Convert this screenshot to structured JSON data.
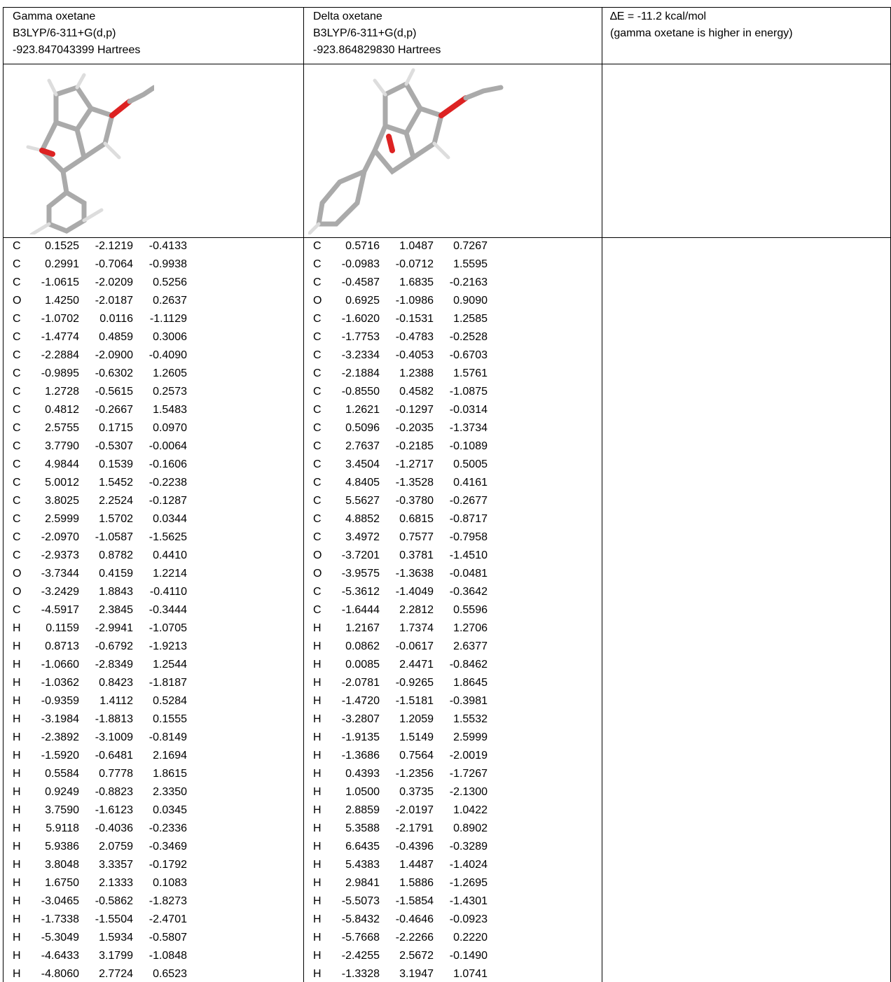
{
  "columns": [
    {
      "title": "Gamma oxetane",
      "method": "B3LYP/6-311+G(d,p)",
      "energy": "-923.847043399 Hartrees",
      "atoms": [
        [
          "C",
          "0.1525",
          "-2.1219",
          "-0.4133"
        ],
        [
          "C",
          "0.2991",
          "-0.7064",
          "-0.9938"
        ],
        [
          "C",
          "-1.0615",
          "-2.0209",
          "0.5256"
        ],
        [
          "O",
          "1.4250",
          "-2.0187",
          "0.2637"
        ],
        [
          "C",
          "-1.0702",
          "0.0116",
          "-1.1129"
        ],
        [
          "C",
          "-1.4774",
          "0.4859",
          "0.3006"
        ],
        [
          "C",
          "-2.2884",
          "-2.0900",
          "-0.4090"
        ],
        [
          "C",
          "-0.9895",
          "-0.6302",
          "1.2605"
        ],
        [
          "C",
          "1.2728",
          "-0.5615",
          "0.2573"
        ],
        [
          "C",
          "0.4812",
          "-0.2667",
          "1.5483"
        ],
        [
          "C",
          "2.5755",
          "0.1715",
          "0.0970"
        ],
        [
          "C",
          "3.7790",
          "-0.5307",
          "-0.0064"
        ],
        [
          "C",
          "4.9844",
          "0.1539",
          "-0.1606"
        ],
        [
          "C",
          "5.0012",
          "1.5452",
          "-0.2238"
        ],
        [
          "C",
          "3.8025",
          "2.2524",
          "-0.1287"
        ],
        [
          "C",
          "2.5999",
          "1.5702",
          "0.0344"
        ],
        [
          "C",
          "-2.0970",
          "-1.0587",
          "-1.5625"
        ],
        [
          "C",
          "-2.9373",
          "0.8782",
          "0.4410"
        ],
        [
          "O",
          "-3.7344",
          "0.4159",
          "1.2214"
        ],
        [
          "O",
          "-3.2429",
          "1.8843",
          "-0.4110"
        ],
        [
          "C",
          "-4.5917",
          "2.3845",
          "-0.3444"
        ],
        [
          "H",
          "0.1159",
          "-2.9941",
          "-1.0705"
        ],
        [
          "H",
          "0.8713",
          "-0.6792",
          "-1.9213"
        ],
        [
          "H",
          "-1.0660",
          "-2.8349",
          "1.2544"
        ],
        [
          "H",
          "-1.0362",
          "0.8423",
          "-1.8187"
        ],
        [
          "H",
          "-0.9359",
          "1.4112",
          "0.5284"
        ],
        [
          "H",
          "-3.1984",
          "-1.8813",
          "0.1555"
        ],
        [
          "H",
          "-2.3892",
          "-3.1009",
          "-0.8149"
        ],
        [
          "H",
          "-1.5920",
          "-0.6481",
          "2.1694"
        ],
        [
          "H",
          "0.5584",
          "0.7778",
          "1.8615"
        ],
        [
          "H",
          "0.9249",
          "-0.8823",
          "2.3350"
        ],
        [
          "H",
          "3.7590",
          "-1.6123",
          "0.0345"
        ],
        [
          "H",
          "5.9118",
          "-0.4036",
          "-0.2336"
        ],
        [
          "H",
          "5.9386",
          "2.0759",
          "-0.3469"
        ],
        [
          "H",
          "3.8048",
          "3.3357",
          "-0.1792"
        ],
        [
          "H",
          "1.6750",
          "2.1333",
          "0.1083"
        ],
        [
          "H",
          "-3.0465",
          "-0.5862",
          "-1.8273"
        ],
        [
          "H",
          "-1.7338",
          "-1.5504",
          "-2.4701"
        ],
        [
          "H",
          "-5.3049",
          "1.5934",
          "-0.5807"
        ],
        [
          "H",
          "-4.6433",
          "3.1799",
          "-1.0848"
        ],
        [
          "H",
          "-4.8060",
          "2.7724",
          "0.6523"
        ]
      ]
    },
    {
      "title": "Delta oxetane",
      "method": "B3LYP/6-311+G(d,p)",
      "energy": "-923.864829830 Hartrees",
      "atoms": [
        [
          "C",
          "0.5716",
          "1.0487",
          "0.7267"
        ],
        [
          "C",
          "-0.0983",
          "-0.0712",
          "1.5595"
        ],
        [
          "C",
          "-0.4587",
          "1.6835",
          "-0.2163"
        ],
        [
          "O",
          "0.6925",
          "-1.0986",
          "0.9090"
        ],
        [
          "C",
          "-1.6020",
          "-0.1531",
          "1.2585"
        ],
        [
          "C",
          "-1.7753",
          "-0.4783",
          "-0.2528"
        ],
        [
          "C",
          "-3.2334",
          "-0.4053",
          "-0.6703"
        ],
        [
          "C",
          "-2.1884",
          "1.2388",
          "1.5761"
        ],
        [
          "C",
          "-0.8550",
          "0.4582",
          "-1.0875"
        ],
        [
          "C",
          "1.2621",
          "-0.1297",
          "-0.0314"
        ],
        [
          "C",
          "0.5096",
          "-0.2035",
          "-1.3734"
        ],
        [
          "C",
          "2.7637",
          "-0.2185",
          "-0.1089"
        ],
        [
          "C",
          "3.4504",
          "-1.2717",
          "0.5005"
        ],
        [
          "C",
          "4.8405",
          "-1.3528",
          "0.4161"
        ],
        [
          "C",
          "5.5627",
          "-0.3780",
          "-0.2677"
        ],
        [
          "C",
          "4.8852",
          "0.6815",
          "-0.8717"
        ],
        [
          "C",
          "3.4972",
          "0.7577",
          "-0.7958"
        ],
        [
          "O",
          "-3.7201",
          "0.3781",
          "-1.4510"
        ],
        [
          "O",
          "-3.9575",
          "-1.3638",
          "-0.0481"
        ],
        [
          "C",
          "-5.3612",
          "-1.4049",
          "-0.3642"
        ],
        [
          "C",
          "-1.6444",
          "2.2812",
          "0.5596"
        ],
        [
          "H",
          "1.2167",
          "1.7374",
          "1.2706"
        ],
        [
          "H",
          "0.0862",
          "-0.0617",
          "2.6377"
        ],
        [
          "H",
          "0.0085",
          "2.4471",
          "-0.8462"
        ],
        [
          "H",
          "-2.0781",
          "-0.9265",
          "1.8645"
        ],
        [
          "H",
          "-1.4720",
          "-1.5181",
          "-0.3981"
        ],
        [
          "H",
          "-3.2807",
          "1.2059",
          "1.5532"
        ],
        [
          "H",
          "-1.9135",
          "1.5149",
          "2.5999"
        ],
        [
          "H",
          "-1.3686",
          "0.7564",
          "-2.0019"
        ],
        [
          "H",
          "0.4393",
          "-1.2356",
          "-1.7267"
        ],
        [
          "H",
          "1.0500",
          "0.3735",
          "-2.1300"
        ],
        [
          "H",
          "2.8859",
          "-2.0197",
          "1.0422"
        ],
        [
          "H",
          "5.3588",
          "-2.1791",
          "0.8902"
        ],
        [
          "H",
          "6.6435",
          "-0.4396",
          "-0.3289"
        ],
        [
          "H",
          "5.4383",
          "1.4487",
          "-1.4024"
        ],
        [
          "H",
          "2.9841",
          "1.5886",
          "-1.2695"
        ],
        [
          "H",
          "-5.5073",
          "-1.5854",
          "-1.4301"
        ],
        [
          "H",
          "-5.8432",
          "-0.4646",
          "-0.0923"
        ],
        [
          "H",
          "-5.7668",
          "-2.2266",
          "0.2220"
        ],
        [
          "H",
          "-2.4255",
          "2.5672",
          "-0.1490"
        ],
        [
          "H",
          "-1.3328",
          "3.1947",
          "1.0741"
        ]
      ]
    }
  ],
  "comparison": {
    "delta_e": "∆E = -11.2 kcal/mol",
    "note": "(gamma oxetane is higher in energy)"
  }
}
